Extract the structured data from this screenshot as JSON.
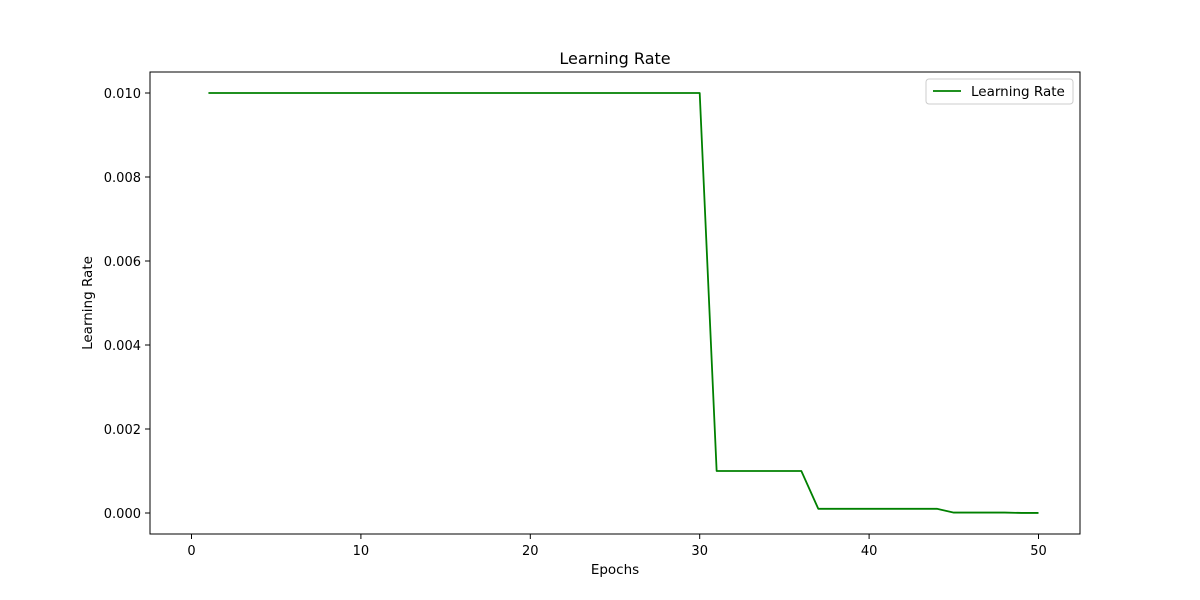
{
  "chart_data": {
    "type": "line",
    "title": "Learning Rate",
    "xlabel": "Epochs",
    "ylabel": "Learning Rate",
    "xlim": [
      -2.45,
      52.45
    ],
    "ylim": [
      -0.0005,
      0.0105
    ],
    "x_ticks": [
      0,
      10,
      20,
      30,
      40,
      50
    ],
    "x_tick_labels": [
      "0",
      "10",
      "20",
      "30",
      "40",
      "50"
    ],
    "y_ticks": [
      0.0,
      0.002,
      0.004,
      0.006,
      0.008,
      0.01
    ],
    "y_tick_labels": [
      "0.000",
      "0.002",
      "0.004",
      "0.006",
      "0.008",
      "0.010"
    ],
    "grid": false,
    "legend_position": "top-right",
    "colors": {
      "series": "#008000",
      "axes": "#000000",
      "background": "#ffffff"
    },
    "series": [
      {
        "name": "Learning Rate",
        "x": [
          1,
          2,
          3,
          4,
          5,
          6,
          7,
          8,
          9,
          10,
          11,
          12,
          13,
          14,
          15,
          16,
          17,
          18,
          19,
          20,
          21,
          22,
          23,
          24,
          25,
          26,
          27,
          28,
          29,
          30,
          31,
          32,
          33,
          34,
          35,
          36,
          37,
          38,
          39,
          40,
          41,
          42,
          43,
          44,
          45,
          46,
          47,
          48,
          49,
          50
        ],
        "y": [
          0.01,
          0.01,
          0.01,
          0.01,
          0.01,
          0.01,
          0.01,
          0.01,
          0.01,
          0.01,
          0.01,
          0.01,
          0.01,
          0.01,
          0.01,
          0.01,
          0.01,
          0.01,
          0.01,
          0.01,
          0.01,
          0.01,
          0.01,
          0.01,
          0.01,
          0.01,
          0.01,
          0.01,
          0.01,
          0.01,
          0.001,
          0.001,
          0.001,
          0.001,
          0.001,
          0.001,
          0.0001,
          0.0001,
          0.0001,
          0.0001,
          0.0001,
          0.0001,
          0.0001,
          0.0001,
          1e-05,
          1e-05,
          1e-05,
          1e-05,
          1e-06,
          1e-06
        ]
      }
    ]
  }
}
